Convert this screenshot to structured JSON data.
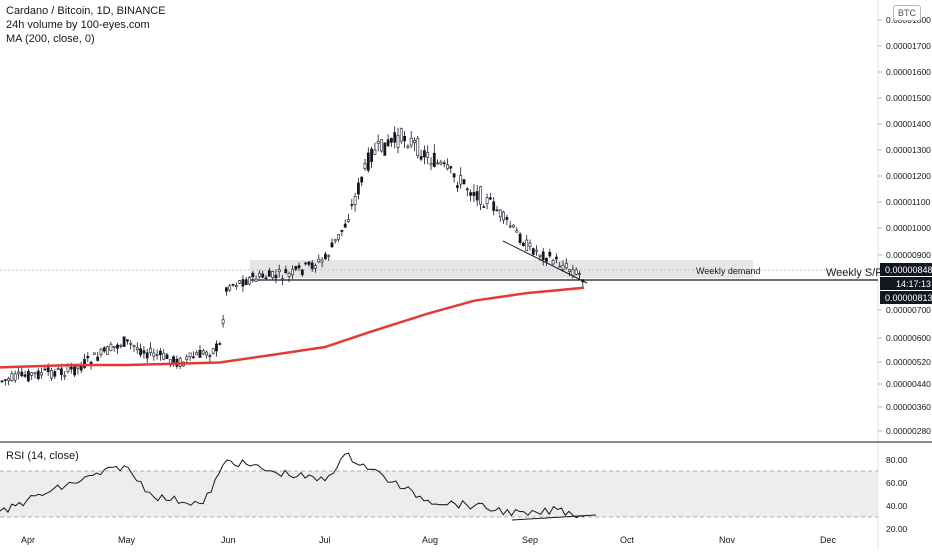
{
  "legend": {
    "title": "Cardano / Bitcoin, 1D, BINANCE",
    "volume": "24h volume by 100-eyes.com",
    "ma": "MA (200, close, 0)"
  },
  "currency_badge": "BTC",
  "rsi_title": "RSI (14, close)",
  "annotations": {
    "weekly_demand": "Weekly demand",
    "weekly_sr": "Weekly S/R"
  },
  "price_labels": {
    "current": "0.00000848",
    "countdown": "14:17:13",
    "ma_value": "0.00000813"
  },
  "colors": {
    "up": "#26a69a",
    "candle": "#131722",
    "ma": "#e53935",
    "demand_zone": "#e6e6e6",
    "rsi_band": "#ededed"
  },
  "chart_data": [
    {
      "type": "line",
      "title": "Cardano / Bitcoin, 1D, BINANCE",
      "x_ticks": [
        "Apr",
        "May",
        "Jun",
        "Jul",
        "Aug",
        "Sep",
        "Oct",
        "Nov",
        "Dec"
      ],
      "y_ticks": [
        "0.00001800",
        "0.00001700",
        "0.00001600",
        "0.00001500",
        "0.00001400",
        "0.00001300",
        "0.00001200",
        "0.00001100",
        "0.00001000",
        "0.00000900",
        "0.00000700",
        "0.00000600",
        "0.00000520",
        "0.00000440",
        "0.00000360",
        "0.00000280"
      ],
      "ylim": [
        2.5e-06,
        1.85e-05
      ],
      "series": [
        {
          "name": "price",
          "x": [
            "Mar 20",
            "Apr 1",
            "Apr 15",
            "May 1",
            "May 8",
            "May 18",
            "May 30",
            "Jun 1",
            "Jun 10",
            "Jun 20",
            "Jul 1",
            "Jul 7",
            "Jul 15",
            "Jul 25",
            "Aug 1",
            "Aug 10",
            "Aug 20",
            "Sep 1",
            "Sep 10",
            "Sep 18"
          ],
          "values": [
            4.4e-06,
            4.7e-06,
            4.9e-06,
            6e-06,
            5.6e-06,
            5.2e-06,
            5.8e-06,
            8.2e-06,
            8.5e-06,
            8.6e-06,
            9.2e-06,
            1.05e-05,
            1.33e-05,
            1.4e-05,
            1.32e-05,
            1.23e-05,
            1.14e-05,
            9.7e-06,
            9.1e-06,
            8.5e-06
          ]
        },
        {
          "name": "MA (200, close, 0)",
          "x": [
            "Mar 20",
            "Apr 15",
            "May 1",
            "May 30",
            "Jun 15",
            "Jul 1",
            "Jul 15",
            "Aug 1",
            "Aug 15",
            "Sep 1",
            "Sep 18"
          ],
          "values": [
            5e-06,
            5.1e-06,
            5.1e-06,
            5.2e-06,
            5.5e-06,
            5.8e-06,
            6.4e-06,
            7.1e-06,
            7.6e-06,
            7.9e-06,
            8.1e-06
          ]
        }
      ],
      "annotations": [
        {
          "label": "Weekly demand",
          "y_range": [
            8.2e-06,
            8.9e-06
          ]
        },
        {
          "label": "Weekly S/R",
          "y": 8e-06
        }
      ],
      "last_price": 8.48e-06
    },
    {
      "type": "line",
      "title": "RSI (14, close)",
      "y_ticks": [
        "80.00",
        "60.00",
        "40.00",
        "20.00"
      ],
      "ylim": [
        20,
        90
      ],
      "band": [
        30,
        70
      ],
      "series": [
        {
          "name": "RSI (14, close)",
          "x": [
            "Mar 20",
            "Apr 1",
            "Apr 15",
            "May 1",
            "May 10",
            "May 25",
            "Jun 1",
            "Jun 15",
            "Jul 1",
            "Jul 7",
            "Jul 15",
            "Jul 25",
            "Aug 1",
            "Aug 15",
            "Sep 1",
            "Sep 10",
            "Sep 18"
          ],
          "values": [
            30,
            45,
            60,
            75,
            48,
            42,
            80,
            70,
            62,
            85,
            72,
            55,
            45,
            40,
            32,
            37,
            31
          ]
        }
      ]
    }
  ]
}
